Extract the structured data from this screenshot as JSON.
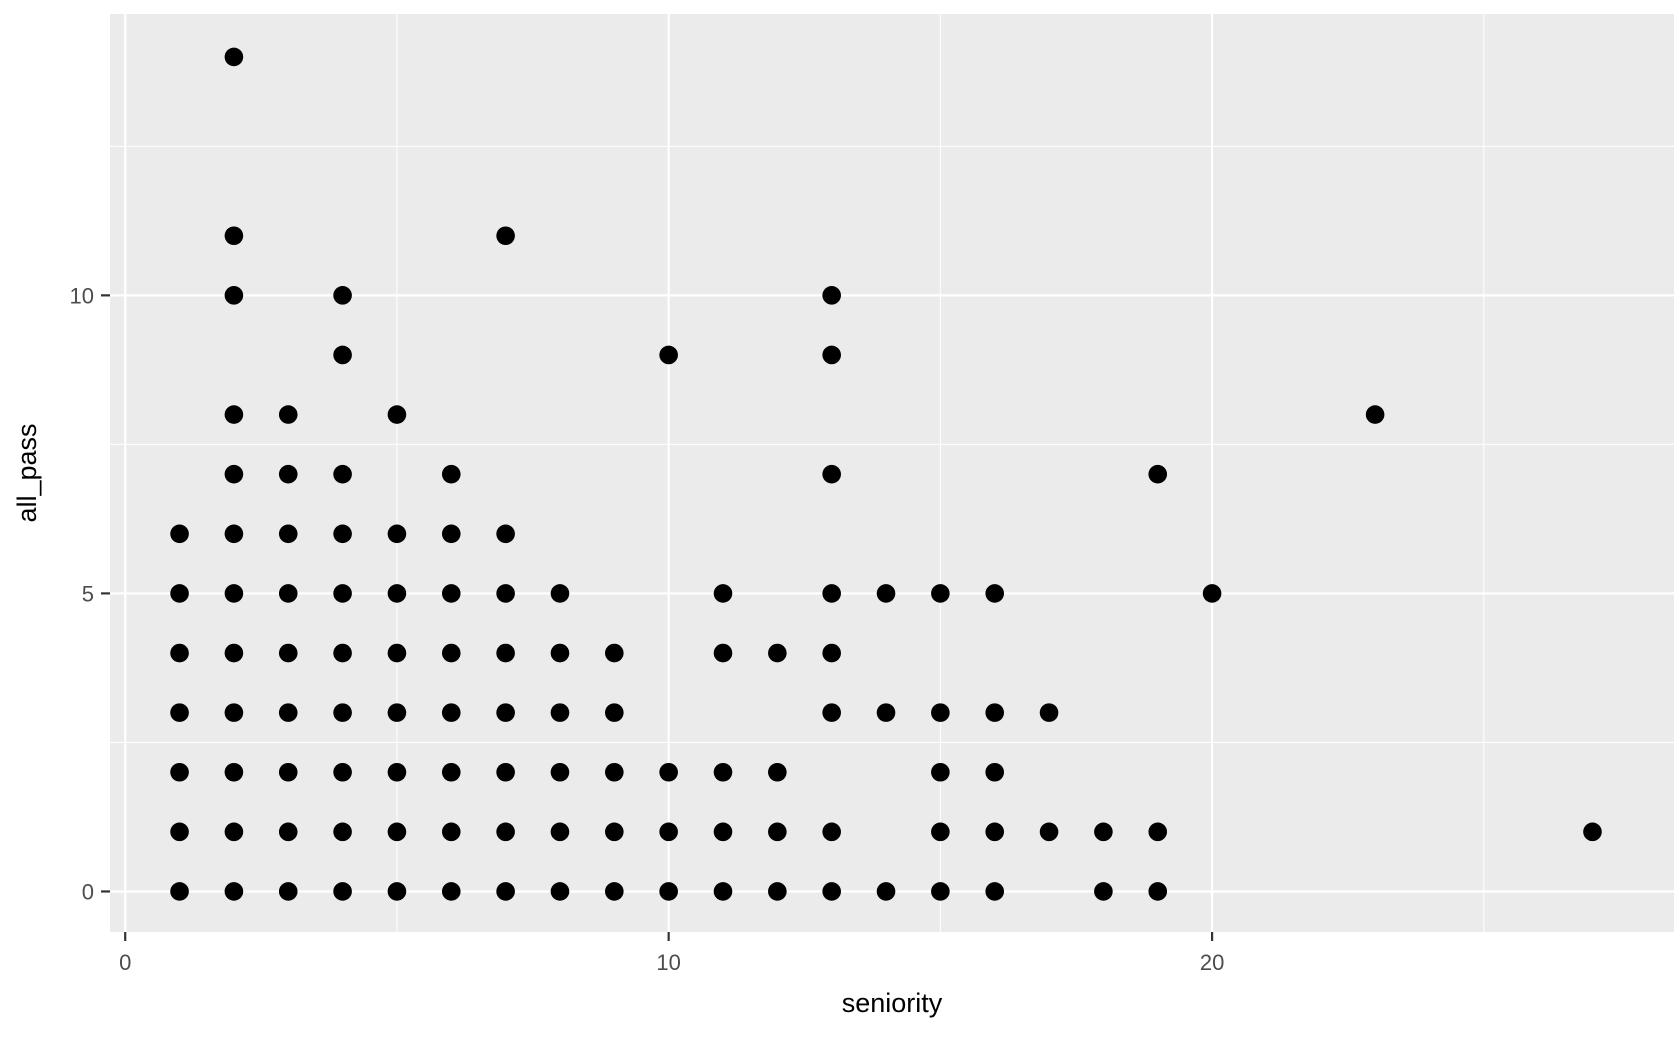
{
  "chart_data": {
    "type": "scatter",
    "title": "",
    "xlabel": "seniority",
    "ylabel": "all_pass",
    "x_ticks": [
      0,
      10,
      20
    ],
    "y_ticks": [
      0,
      5,
      10
    ],
    "x_minor": [
      5,
      15,
      25
    ],
    "y_minor": [
      2.5,
      7.5,
      12.5
    ],
    "xlim": [
      -0.28,
      28.5
    ],
    "ylim": [
      -0.68,
      14.72
    ],
    "grid": "major-and-minor",
    "legend_position": "none",
    "point_color": "#000000",
    "panel_background": "#EBEBEB",
    "gridline_color": "#FFFFFF",
    "tick_label_color": "#4D4D4D",
    "axis_title_color": "#000000",
    "tick_mark_color": "#333333",
    "points": [
      [
        1,
        0
      ],
      [
        2,
        0
      ],
      [
        3,
        0
      ],
      [
        4,
        0
      ],
      [
        5,
        0
      ],
      [
        6,
        0
      ],
      [
        7,
        0
      ],
      [
        8,
        0
      ],
      [
        9,
        0
      ],
      [
        10,
        0
      ],
      [
        11,
        0
      ],
      [
        12,
        0
      ],
      [
        13,
        0
      ],
      [
        14,
        0
      ],
      [
        15,
        0
      ],
      [
        16,
        0
      ],
      [
        18,
        0
      ],
      [
        19,
        0
      ],
      [
        1,
        1
      ],
      [
        2,
        1
      ],
      [
        3,
        1
      ],
      [
        4,
        1
      ],
      [
        5,
        1
      ],
      [
        6,
        1
      ],
      [
        7,
        1
      ],
      [
        8,
        1
      ],
      [
        9,
        1
      ],
      [
        10,
        1
      ],
      [
        11,
        1
      ],
      [
        12,
        1
      ],
      [
        13,
        1
      ],
      [
        15,
        1
      ],
      [
        16,
        1
      ],
      [
        17,
        1
      ],
      [
        18,
        1
      ],
      [
        19,
        1
      ],
      [
        27,
        1
      ],
      [
        1,
        2
      ],
      [
        2,
        2
      ],
      [
        3,
        2
      ],
      [
        4,
        2
      ],
      [
        5,
        2
      ],
      [
        6,
        2
      ],
      [
        7,
        2
      ],
      [
        8,
        2
      ],
      [
        9,
        2
      ],
      [
        10,
        2
      ],
      [
        11,
        2
      ],
      [
        12,
        2
      ],
      [
        15,
        2
      ],
      [
        16,
        2
      ],
      [
        1,
        3
      ],
      [
        2,
        3
      ],
      [
        3,
        3
      ],
      [
        4,
        3
      ],
      [
        5,
        3
      ],
      [
        6,
        3
      ],
      [
        7,
        3
      ],
      [
        8,
        3
      ],
      [
        9,
        3
      ],
      [
        13,
        3
      ],
      [
        14,
        3
      ],
      [
        15,
        3
      ],
      [
        16,
        3
      ],
      [
        17,
        3
      ],
      [
        1,
        4
      ],
      [
        2,
        4
      ],
      [
        3,
        4
      ],
      [
        4,
        4
      ],
      [
        5,
        4
      ],
      [
        6,
        4
      ],
      [
        7,
        4
      ],
      [
        8,
        4
      ],
      [
        9,
        4
      ],
      [
        11,
        4
      ],
      [
        12,
        4
      ],
      [
        13,
        4
      ],
      [
        1,
        5
      ],
      [
        2,
        5
      ],
      [
        3,
        5
      ],
      [
        4,
        5
      ],
      [
        5,
        5
      ],
      [
        6,
        5
      ],
      [
        7,
        5
      ],
      [
        8,
        5
      ],
      [
        11,
        5
      ],
      [
        13,
        5
      ],
      [
        14,
        5
      ],
      [
        15,
        5
      ],
      [
        16,
        5
      ],
      [
        20,
        5
      ],
      [
        1,
        6
      ],
      [
        2,
        6
      ],
      [
        3,
        6
      ],
      [
        4,
        6
      ],
      [
        5,
        6
      ],
      [
        6,
        6
      ],
      [
        7,
        6
      ],
      [
        2,
        7
      ],
      [
        3,
        7
      ],
      [
        4,
        7
      ],
      [
        6,
        7
      ],
      [
        13,
        7
      ],
      [
        19,
        7
      ],
      [
        2,
        8
      ],
      [
        3,
        8
      ],
      [
        5,
        8
      ],
      [
        23,
        8
      ],
      [
        4,
        9
      ],
      [
        10,
        9
      ],
      [
        13,
        9
      ],
      [
        2,
        10
      ],
      [
        4,
        10
      ],
      [
        13,
        10
      ],
      [
        2,
        11
      ],
      [
        7,
        11
      ],
      [
        2,
        14
      ]
    ]
  }
}
